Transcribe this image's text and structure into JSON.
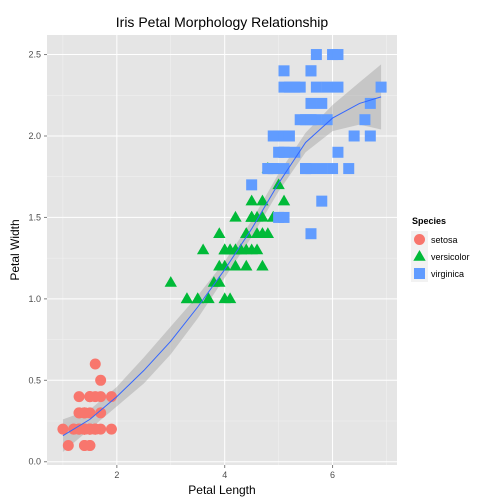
{
  "chart_data": {
    "type": "scatter",
    "title": "Iris Petal Morphology Relationship",
    "xlabel": "Petal Length",
    "ylabel": "Petal Width",
    "xlim": [
      0.705,
      7.195
    ],
    "ylim": [
      -0.02,
      2.62
    ],
    "xticks": [
      2,
      4,
      6
    ],
    "xtick_labels": [
      "2",
      "4",
      "6"
    ],
    "yticks": [
      0.0,
      0.5,
      1.0,
      1.5,
      2.0,
      2.5
    ],
    "ytick_labels": [
      "0.0",
      "0.5",
      "1.0",
      "1.5",
      "2.0",
      "2.5"
    ],
    "grid": true,
    "legend": {
      "title": "Species",
      "position": "right"
    },
    "smooth": {
      "method": "loess",
      "color": "#3366FF",
      "points": [
        [
          1.0,
          0.16,
          0.06,
          0.26
        ],
        [
          1.5,
          0.26,
          0.2,
          0.32
        ],
        [
          2.0,
          0.4,
          0.34,
          0.46
        ],
        [
          2.5,
          0.56,
          0.48,
          0.64
        ],
        [
          3.0,
          0.74,
          0.66,
          0.83
        ],
        [
          3.5,
          0.95,
          0.88,
          1.02
        ],
        [
          4.0,
          1.18,
          1.13,
          1.23
        ],
        [
          4.5,
          1.43,
          1.38,
          1.48
        ],
        [
          5.0,
          1.71,
          1.66,
          1.77
        ],
        [
          5.5,
          1.96,
          1.9,
          2.02
        ],
        [
          6.0,
          2.11,
          2.03,
          2.19
        ],
        [
          6.5,
          2.2,
          2.07,
          2.33
        ],
        [
          6.9,
          2.24,
          2.04,
          2.44
        ]
      ]
    },
    "series": [
      {
        "name": "setosa",
        "color": "#F8766D",
        "shape": "circle",
        "points": [
          [
            1.4,
            0.2
          ],
          [
            1.4,
            0.2
          ],
          [
            1.3,
            0.2
          ],
          [
            1.5,
            0.2
          ],
          [
            1.4,
            0.2
          ],
          [
            1.7,
            0.4
          ],
          [
            1.4,
            0.3
          ],
          [
            1.5,
            0.2
          ],
          [
            1.4,
            0.2
          ],
          [
            1.5,
            0.1
          ],
          [
            1.5,
            0.2
          ],
          [
            1.6,
            0.2
          ],
          [
            1.4,
            0.1
          ],
          [
            1.1,
            0.1
          ],
          [
            1.2,
            0.2
          ],
          [
            1.5,
            0.4
          ],
          [
            1.3,
            0.4
          ],
          [
            1.4,
            0.3
          ],
          [
            1.7,
            0.3
          ],
          [
            1.5,
            0.3
          ],
          [
            1.7,
            0.2
          ],
          [
            1.5,
            0.4
          ],
          [
            1.0,
            0.2
          ],
          [
            1.7,
            0.5
          ],
          [
            1.9,
            0.2
          ],
          [
            1.6,
            0.2
          ],
          [
            1.6,
            0.4
          ],
          [
            1.5,
            0.2
          ],
          [
            1.4,
            0.2
          ],
          [
            1.6,
            0.2
          ],
          [
            1.6,
            0.2
          ],
          [
            1.5,
            0.4
          ],
          [
            1.5,
            0.1
          ],
          [
            1.4,
            0.2
          ],
          [
            1.5,
            0.2
          ],
          [
            1.2,
            0.2
          ],
          [
            1.3,
            0.2
          ],
          [
            1.4,
            0.1
          ],
          [
            1.3,
            0.2
          ],
          [
            1.5,
            0.2
          ],
          [
            1.3,
            0.3
          ],
          [
            1.3,
            0.3
          ],
          [
            1.3,
            0.2
          ],
          [
            1.6,
            0.6
          ],
          [
            1.9,
            0.4
          ],
          [
            1.4,
            0.3
          ],
          [
            1.6,
            0.2
          ],
          [
            1.4,
            0.2
          ],
          [
            1.5,
            0.2
          ],
          [
            1.4,
            0.2
          ]
        ]
      },
      {
        "name": "versicolor",
        "color": "#00BA38",
        "shape": "triangle",
        "points": [
          [
            4.7,
            1.4
          ],
          [
            4.5,
            1.5
          ],
          [
            4.9,
            1.5
          ],
          [
            4.0,
            1.3
          ],
          [
            4.6,
            1.5
          ],
          [
            4.5,
            1.3
          ],
          [
            4.7,
            1.6
          ],
          [
            3.3,
            1.0
          ],
          [
            4.6,
            1.3
          ],
          [
            3.9,
            1.4
          ],
          [
            3.5,
            1.0
          ],
          [
            4.2,
            1.5
          ],
          [
            4.0,
            1.0
          ],
          [
            4.7,
            1.4
          ],
          [
            3.6,
            1.3
          ],
          [
            4.4,
            1.4
          ],
          [
            4.5,
            1.5
          ],
          [
            4.1,
            1.0
          ],
          [
            4.5,
            1.5
          ],
          [
            3.9,
            1.1
          ],
          [
            4.8,
            1.8
          ],
          [
            4.0,
            1.3
          ],
          [
            4.9,
            1.5
          ],
          [
            4.7,
            1.2
          ],
          [
            4.3,
            1.3
          ],
          [
            4.4,
            1.4
          ],
          [
            4.8,
            1.4
          ],
          [
            5.0,
            1.7
          ],
          [
            4.5,
            1.5
          ],
          [
            3.5,
            1.0
          ],
          [
            3.8,
            1.1
          ],
          [
            3.7,
            1.0
          ],
          [
            3.9,
            1.2
          ],
          [
            5.1,
            1.6
          ],
          [
            4.5,
            1.5
          ],
          [
            4.5,
            1.6
          ],
          [
            4.7,
            1.5
          ],
          [
            4.4,
            1.3
          ],
          [
            4.1,
            1.3
          ],
          [
            4.0,
            1.3
          ],
          [
            4.4,
            1.2
          ],
          [
            4.6,
            1.4
          ],
          [
            4.0,
            1.2
          ],
          [
            3.3,
            1.0
          ],
          [
            4.2,
            1.3
          ],
          [
            4.2,
            1.2
          ],
          [
            4.2,
            1.3
          ],
          [
            4.3,
            1.3
          ],
          [
            3.0,
            1.1
          ],
          [
            4.1,
            1.3
          ]
        ]
      },
      {
        "name": "virginica",
        "color": "#619CFF",
        "shape": "square",
        "points": [
          [
            6.0,
            2.5
          ],
          [
            5.1,
            1.9
          ],
          [
            5.9,
            2.1
          ],
          [
            5.6,
            1.8
          ],
          [
            5.8,
            2.2
          ],
          [
            6.6,
            2.1
          ],
          [
            4.5,
            1.7
          ],
          [
            6.3,
            1.8
          ],
          [
            5.8,
            1.8
          ],
          [
            6.1,
            2.5
          ],
          [
            5.1,
            2.0
          ],
          [
            5.3,
            1.9
          ],
          [
            5.5,
            2.1
          ],
          [
            5.0,
            2.0
          ],
          [
            5.1,
            2.4
          ],
          [
            5.3,
            2.3
          ],
          [
            5.5,
            1.8
          ],
          [
            6.7,
            2.2
          ],
          [
            6.9,
            2.3
          ],
          [
            5.0,
            1.5
          ],
          [
            5.7,
            2.3
          ],
          [
            4.9,
            2.0
          ],
          [
            6.7,
            2.0
          ],
          [
            4.9,
            1.8
          ],
          [
            5.7,
            2.1
          ],
          [
            6.0,
            1.8
          ],
          [
            4.8,
            1.8
          ],
          [
            4.9,
            1.8
          ],
          [
            5.6,
            2.1
          ],
          [
            5.8,
            1.6
          ],
          [
            6.1,
            1.9
          ],
          [
            6.4,
            2.0
          ],
          [
            5.6,
            2.2
          ],
          [
            5.1,
            1.5
          ],
          [
            5.6,
            1.4
          ],
          [
            6.1,
            2.3
          ],
          [
            5.6,
            2.4
          ],
          [
            5.5,
            1.8
          ],
          [
            4.8,
            1.8
          ],
          [
            5.4,
            2.1
          ],
          [
            5.6,
            2.4
          ],
          [
            5.1,
            2.3
          ],
          [
            5.1,
            1.9
          ],
          [
            5.9,
            2.3
          ],
          [
            5.7,
            2.5
          ],
          [
            5.2,
            2.3
          ],
          [
            5.0,
            1.9
          ],
          [
            5.2,
            2.0
          ],
          [
            5.4,
            2.3
          ],
          [
            5.1,
            1.8
          ]
        ]
      }
    ]
  }
}
